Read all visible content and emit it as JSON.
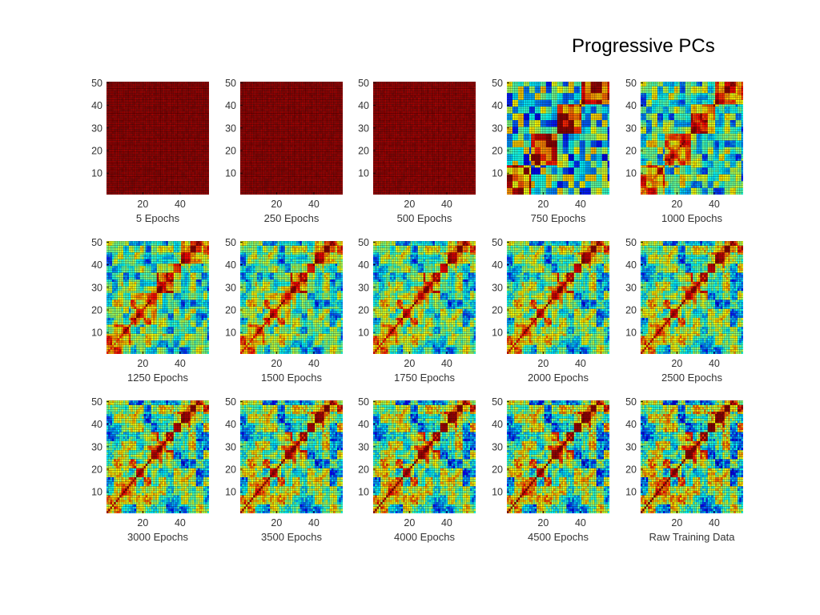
{
  "title": "Progressive PCs",
  "colors": {
    "colormap": "jet",
    "gridline": "#000000",
    "background": "#ffffff"
  },
  "chart_data": {
    "type": "heatmap",
    "colormap": "jet",
    "matrix_size": 55,
    "xticks": [
      20,
      40
    ],
    "yticks": [
      10,
      20,
      30,
      40,
      50
    ],
    "xlim": [
      0.5,
      55.5
    ],
    "ylim": [
      0.5,
      50.5
    ],
    "color_range": [
      0,
      1
    ],
    "grid": true,
    "panels": [
      {
        "label": "5 Epochs",
        "stage": 0.0
      },
      {
        "label": "250 Epochs",
        "stage": 0.01
      },
      {
        "label": "500 Epochs",
        "stage": 0.04
      },
      {
        "label": "750 Epochs",
        "stage": 0.45
      },
      {
        "label": "1000 Epochs",
        "stage": 0.6
      },
      {
        "label": "1250 Epochs",
        "stage": 0.7
      },
      {
        "label": "1500 Epochs",
        "stage": 0.76
      },
      {
        "label": "1750 Epochs",
        "stage": 0.81
      },
      {
        "label": "2000 Epochs",
        "stage": 0.85
      },
      {
        "label": "2500 Epochs",
        "stage": 0.88
      },
      {
        "label": "3000 Epochs",
        "stage": 0.91
      },
      {
        "label": "3500 Epochs",
        "stage": 0.93
      },
      {
        "label": "4000 Epochs",
        "stage": 0.95
      },
      {
        "label": "4500 Epochs",
        "stage": 0.97
      },
      {
        "label": "Raw Training Data",
        "stage": 1.0
      }
    ]
  }
}
